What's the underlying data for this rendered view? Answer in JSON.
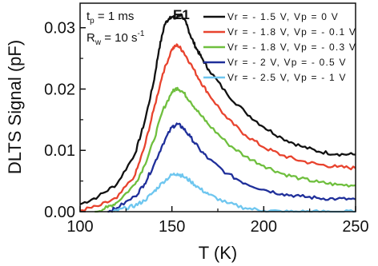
{
  "chart_data": {
    "type": "line",
    "xlabel": "T (K)",
    "ylabel": "DLTS Signal (pF)",
    "xlim": [
      100,
      250
    ],
    "ylim": [
      0,
      0.034
    ],
    "x_ticks": [
      "100",
      "150",
      "200",
      "250"
    ],
    "y_ticks": [
      "0.00",
      "0.01",
      "0.02",
      "0.03"
    ],
    "grid": false,
    "legend_position": "top-right",
    "annotations": {
      "tp_symbol": "t",
      "tp_sub": "p",
      "tp_value": " = 1 ms",
      "rw_symbol": "R",
      "rw_sub": "w",
      "rw_value": " = 10 s",
      "rw_sup": "-1",
      "peak_label": "E1"
    },
    "series": [
      {
        "name": "Vr = - 1.5 V, Vp = 0 V",
        "color": "#111111",
        "x": [
          100,
          110,
          120,
          130,
          135,
          140,
          143,
          146,
          149,
          152,
          155,
          158,
          160,
          163,
          166,
          170,
          180,
          190,
          200,
          210,
          220,
          230,
          240,
          250
        ],
        "y": [
          0.0012,
          0.0025,
          0.0045,
          0.0095,
          0.0145,
          0.021,
          0.0265,
          0.0305,
          0.0318,
          0.0315,
          0.0322,
          0.0305,
          0.0288,
          0.0268,
          0.0252,
          0.0232,
          0.0192,
          0.0162,
          0.0138,
          0.012,
          0.0107,
          0.0098,
          0.0094,
          0.0093
        ]
      },
      {
        "name": "Vr = - 1.8 V, Vp = - 0.1 V",
        "color": "#e8432e",
        "x": [
          100,
          110,
          120,
          130,
          135,
          140,
          145,
          150,
          153,
          156,
          160,
          165,
          170,
          180,
          190,
          200,
          210,
          220,
          230,
          240,
          250
        ],
        "y": [
          0.0002,
          0.0009,
          0.0022,
          0.006,
          0.0105,
          0.0165,
          0.0225,
          0.0265,
          0.0272,
          0.0262,
          0.0242,
          0.0215,
          0.0192,
          0.0152,
          0.0125,
          0.0105,
          0.0092,
          0.0083,
          0.0077,
          0.0073,
          0.0071
        ]
      },
      {
        "name": "Vr = - 1.8 V, Vp = - 0.3 V",
        "color": "#6fbf3e",
        "x": [
          108,
          115,
          120,
          130,
          135,
          140,
          145,
          150,
          153,
          156,
          160,
          165,
          170,
          180,
          190,
          200,
          210,
          220,
          230,
          240,
          250
        ],
        "y": [
          0.0,
          0.0007,
          0.0015,
          0.0045,
          0.0075,
          0.0115,
          0.0165,
          0.0195,
          0.0202,
          0.0195,
          0.018,
          0.016,
          0.0142,
          0.0112,
          0.009,
          0.0075,
          0.0062,
          0.0054,
          0.0048,
          0.0044,
          0.0043
        ]
      },
      {
        "name": "Vr = - 2 V, Vp = - 0.5 V",
        "color": "#1f2f9a",
        "x": [
          115,
          120,
          130,
          135,
          140,
          145,
          150,
          153,
          156,
          160,
          165,
          170,
          180,
          190,
          200,
          210,
          220,
          230,
          240,
          250
        ],
        "y": [
          0.0,
          0.0006,
          0.0025,
          0.0045,
          0.0075,
          0.011,
          0.0138,
          0.0143,
          0.0137,
          0.0122,
          0.0102,
          0.0086,
          0.0062,
          0.0046,
          0.0036,
          0.0029,
          0.0025,
          0.0022,
          0.0021,
          0.002
        ]
      },
      {
        "name": "Vr = - 2.5 V, Vp = - 1 V",
        "color": "#6ec6ef",
        "x": [
          118,
          125,
          130,
          135,
          140,
          145,
          150,
          153,
          156,
          160,
          165,
          170,
          180,
          190,
          200,
          210,
          220,
          230,
          240,
          250
        ],
        "y": [
          0.0,
          0.0006,
          0.001,
          0.0018,
          0.0032,
          0.0048,
          0.006,
          0.0062,
          0.0058,
          0.005,
          0.0038,
          0.0028,
          0.0014,
          0.0006,
          0.0002,
          0.0,
          0.0,
          0.0,
          0.0,
          0.0
        ]
      }
    ]
  }
}
